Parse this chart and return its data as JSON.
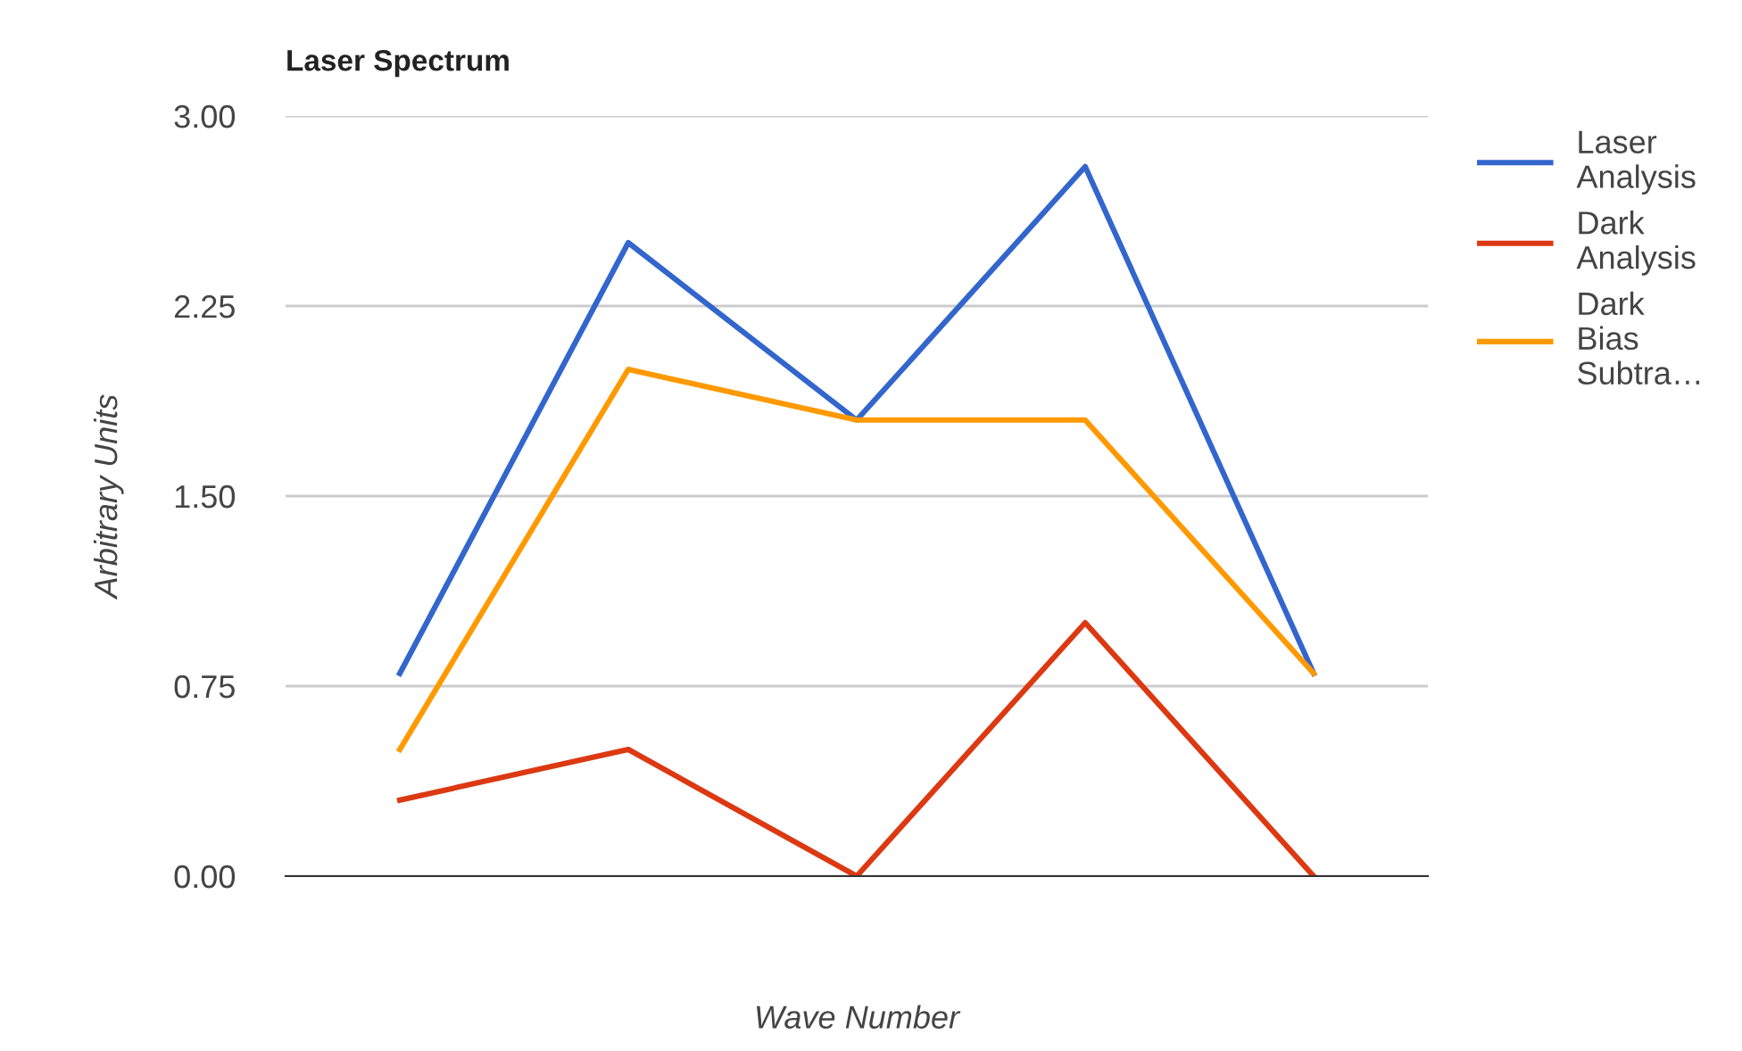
{
  "chart_data": {
    "type": "line",
    "title": "Laser Spectrum",
    "xlabel": "Wave Number",
    "ylabel": "Arbitrary Units",
    "categories": [
      null,
      null,
      null,
      null,
      null
    ],
    "series": [
      {
        "name": "Laser Analysis",
        "color": "#3366cc",
        "values": [
          0.8,
          2.5,
          1.8,
          2.8,
          0.8
        ]
      },
      {
        "name": "Dark Analysis",
        "color": "#dc3912",
        "values": [
          0.3,
          0.5,
          0,
          1.0,
          0
        ]
      },
      {
        "name": "Dark Bias Subtra…",
        "color": "#ff9900",
        "values": [
          0.5,
          2.0,
          1.8,
          1.8,
          0.8
        ]
      }
    ],
    "ylim": [
      0,
      3
    ],
    "yticks": [
      {
        "value": 0,
        "label": "0.00"
      },
      {
        "value": 0.75,
        "label": "0.75"
      },
      {
        "value": 1.5,
        "label": "1.50"
      },
      {
        "value": 2.25,
        "label": "2.25"
      },
      {
        "value": 3,
        "label": "3.00"
      }
    ],
    "grid": "y",
    "legend": "right",
    "tick_labels": "y",
    "marker": "none",
    "line_style": "solid"
  }
}
